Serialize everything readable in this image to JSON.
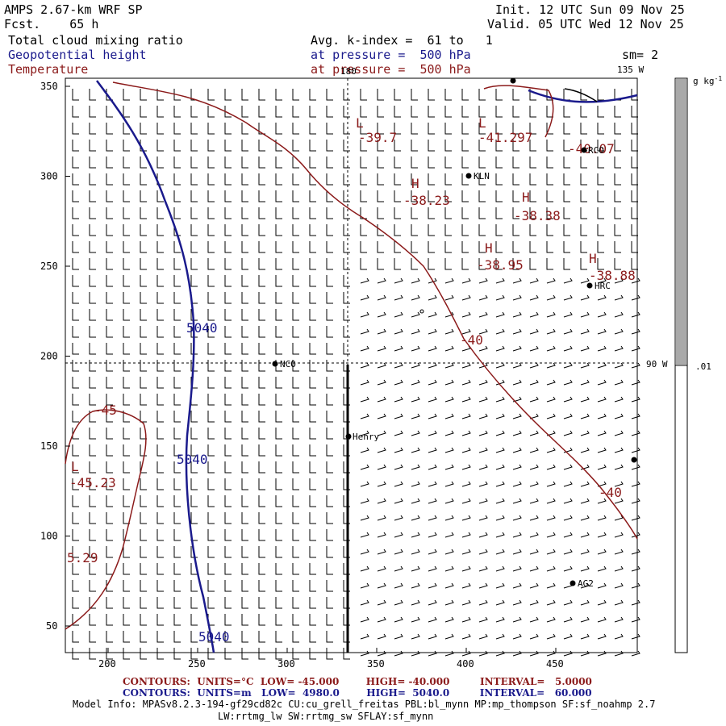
{
  "header": {
    "model": "AMPS 2.67-km WRF SP",
    "fcst_label": "Fcst.",
    "fcst_value": "65 h",
    "init": "Init. 12 UTC Sun 09 Nov 25",
    "valid": "Valid. 05 UTC Wed 12 Nov 25",
    "field1": "Total cloud mixing ratio",
    "field2": "Geopotential height",
    "field3": "Temperature",
    "avg_line": "Avg. k-index =  61 to   1",
    "pressure1": "at pressure =  500 hPa",
    "pressure2": "at pressure =  500 hPa",
    "sm": "sm= 2"
  },
  "colorbar": {
    "units": "g kg",
    "units_exp": "-1",
    "label": ".01",
    "fill_gray": "#a9a9a9"
  },
  "axes": {
    "x_ticks": [
      "200",
      "250",
      "300",
      "350",
      "400",
      "450"
    ],
    "y_ticks": [
      "350",
      "300",
      "250",
      "200",
      "150",
      "100",
      "50"
    ],
    "lon_labels": [
      "180",
      "135 W",
      "90 W"
    ]
  },
  "stations": [
    "NCO",
    "Henry",
    "KLN",
    "RCO",
    "HRC",
    "AG2"
  ],
  "temp_labels": [
    "-39.7",
    "-41.297",
    "-40.07",
    "-38.23",
    "-38.38",
    "-38.95",
    "-38.88",
    "-40",
    "-40",
    "-45",
    "-45.23",
    "5.29"
  ],
  "temp_extrema_letters": [
    "L",
    "L",
    "H",
    "H",
    "H",
    "H",
    "L"
  ],
  "height_labels": [
    "5040",
    "5040",
    "5040"
  ],
  "footer": {
    "contours_temp": "CONTOURS:  UNITS=°C  LOW= -45.000        HIGH= -40.000         INTERVAL=   5.0000",
    "contours_height": "CONTOURS:  UNITS=m   LOW=  4980.0        HIGH=  5040.0         INTERVAL=   60.000",
    "model_info1": "Model Info: MPASv8.2.3-194-gf29cd82c CU:cu_grell_freitas PBL:bl_mynn MP:mp_thompson SF:sf_noahmp 2.7",
    "model_info2": "LW:rrtmg_lw SW:rrtmg_sw SFLAY:sf_mynn"
  },
  "colors": {
    "height_contour": "#1a1a8c",
    "temp_contour": "#8b1a1a"
  }
}
